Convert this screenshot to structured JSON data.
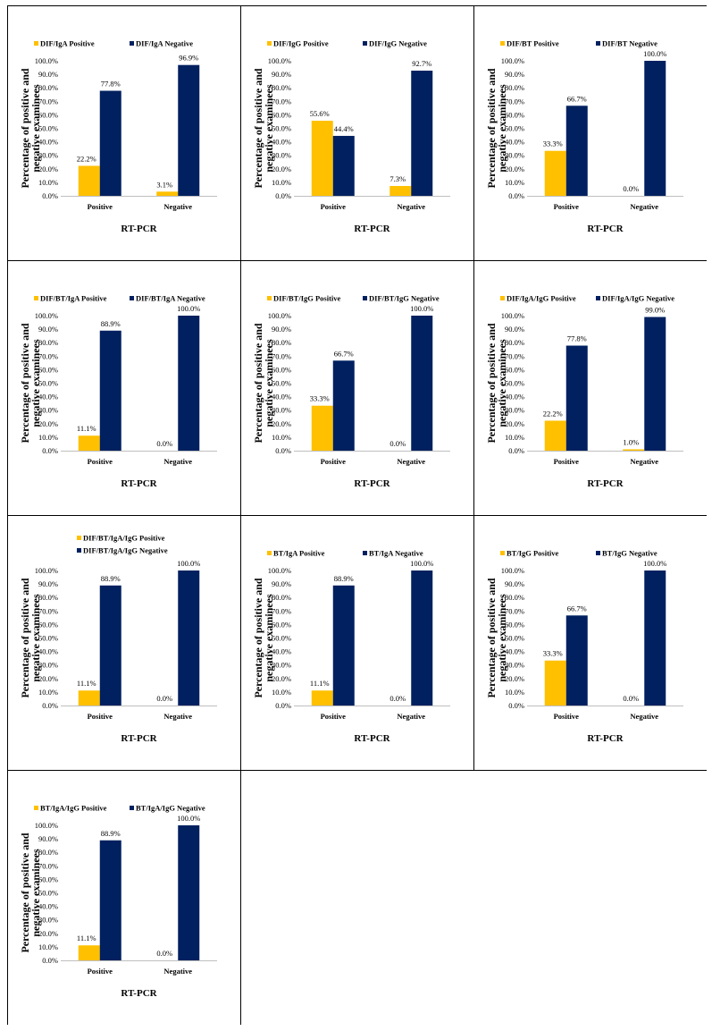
{
  "colors": {
    "positive": "#FFC000",
    "negative": "#002060",
    "border": "#000000"
  },
  "chart_data": [
    {
      "type": "bar",
      "categories": [
        "Positive",
        "Negative"
      ],
      "series": [
        {
          "name": "DIF/IgA Positive",
          "values": [
            22.2,
            3.1
          ]
        },
        {
          "name": "DIF/IgA Negative",
          "values": [
            77.8,
            96.9
          ]
        }
      ],
      "data_labels": [
        [
          "22.2%",
          "3.1%"
        ],
        [
          "77.8%",
          "96.9%"
        ]
      ],
      "xlabel": "RT-PCR",
      "ylabel": [
        "Percentage of positive and",
        "negative examinees"
      ],
      "ylim": [
        0,
        100
      ],
      "yticks": [
        "0.0%",
        "10.0%",
        "20.0%",
        "30.0%",
        "40.0%",
        "50.0%",
        "60.0%",
        "70.0%",
        "80.0%",
        "90.0%",
        "100.0%"
      ],
      "grid": false,
      "legend": "top"
    },
    {
      "type": "bar",
      "categories": [
        "Positive",
        "Negative"
      ],
      "series": [
        {
          "name": "DIF/IgG Positive",
          "values": [
            55.6,
            7.3
          ]
        },
        {
          "name": "DIF/IgG Negative",
          "values": [
            44.4,
            92.7
          ]
        }
      ],
      "data_labels": [
        [
          "55.6%",
          "7.3%"
        ],
        [
          "44.4%",
          "92.7%"
        ]
      ],
      "xlabel": "RT-PCR",
      "ylabel": [
        "Percentage of positive and",
        "negative examinees"
      ],
      "ylim": [
        0,
        100
      ],
      "yticks": [
        "0.0%",
        "10.0%",
        "20.0%",
        "30.0%",
        "40.0%",
        "50.0%",
        "60.0%",
        "70.0%",
        "80.0%",
        "90.0%",
        "100.0%"
      ],
      "grid": false,
      "legend": "top"
    },
    {
      "type": "bar",
      "categories": [
        "Positive",
        "Negative"
      ],
      "series": [
        {
          "name": "DIF/BT Positive",
          "values": [
            33.3,
            0.0
          ]
        },
        {
          "name": "DIF/BT Negative",
          "values": [
            66.7,
            100.0
          ]
        }
      ],
      "data_labels": [
        [
          "33.3%",
          "0.0%"
        ],
        [
          "66.7%",
          "100.0%"
        ]
      ],
      "xlabel": "RT-PCR",
      "ylabel": [
        "Percentage of positive and",
        "negative examinees"
      ],
      "ylim": [
        0,
        100
      ],
      "yticks": [
        "0.0%",
        "10.0%",
        "20.0%",
        "30.0%",
        "40.0%",
        "50.0%",
        "60.0%",
        "70.0%",
        "80.0%",
        "90.0%",
        "100.0%"
      ],
      "grid": false,
      "legend": "top"
    },
    {
      "type": "bar",
      "categories": [
        "Positive",
        "Negative"
      ],
      "series": [
        {
          "name": "DIF/BT/IgA Positive",
          "values": [
            11.1,
            0.0
          ]
        },
        {
          "name": "DIF/BT/IgA Negative",
          "values": [
            88.9,
            100.0
          ]
        }
      ],
      "data_labels": [
        [
          "11.1%",
          "0.0%"
        ],
        [
          "88.9%",
          "100.0%"
        ]
      ],
      "xlabel": "RT-PCR",
      "ylabel": [
        "Percentage of positive and",
        "negative examinees"
      ],
      "ylim": [
        0,
        100
      ],
      "yticks": [
        "0.0%",
        "10.0%",
        "20.0%",
        "30.0%",
        "40.0%",
        "50.0%",
        "60.0%",
        "70.0%",
        "80.0%",
        "90.0%",
        "100.0%"
      ],
      "grid": false,
      "legend": "top"
    },
    {
      "type": "bar",
      "categories": [
        "Positive",
        "Negative"
      ],
      "series": [
        {
          "name": "DIF/BT/IgG Positive",
          "values": [
            33.3,
            0.0
          ]
        },
        {
          "name": "DIF/BT/IgG Negative",
          "values": [
            66.7,
            100.0
          ]
        }
      ],
      "data_labels": [
        [
          "33.3%",
          "0.0%"
        ],
        [
          "66.7%",
          "100.0%"
        ]
      ],
      "xlabel": "RT-PCR",
      "ylabel": [
        "Percentage of positive and",
        "negative examinees"
      ],
      "ylim": [
        0,
        100
      ],
      "yticks": [
        "0.0%",
        "10.0%",
        "20.0%",
        "30.0%",
        "40.0%",
        "50.0%",
        "60.0%",
        "70.0%",
        "80.0%",
        "90.0%",
        "100.0%"
      ],
      "grid": false,
      "legend": "top"
    },
    {
      "type": "bar",
      "categories": [
        "Positive",
        "Negative"
      ],
      "series": [
        {
          "name": "DIF/IgA/IgG Positive",
          "values": [
            22.2,
            1.0
          ]
        },
        {
          "name": "DIF/IgA/IgG Negative",
          "values": [
            77.8,
            99.0
          ]
        }
      ],
      "data_labels": [
        [
          "22.2%",
          "1.0%"
        ],
        [
          "77.8%",
          "99.0%"
        ]
      ],
      "xlabel": "RT-PCR",
      "ylabel": [
        "Percentage of positive and",
        "negative examinees"
      ],
      "ylim": [
        0,
        100
      ],
      "yticks": [
        "0.0%",
        "10.0%",
        "20.0%",
        "30.0%",
        "40.0%",
        "50.0%",
        "60.0%",
        "70.0%",
        "80.0%",
        "90.0%",
        "100.0%"
      ],
      "grid": false,
      "legend": "top"
    },
    {
      "type": "bar",
      "categories": [
        "Positive",
        "Negative"
      ],
      "series": [
        {
          "name": "DIF/BT/IgA/IgG Positive",
          "values": [
            11.1,
            0.0
          ]
        },
        {
          "name": "DIF/BT/IgA/IgG Negative",
          "values": [
            88.9,
            100.0
          ]
        }
      ],
      "data_labels": [
        [
          "11.1%",
          "0.0%"
        ],
        [
          "88.9%",
          "100.0%"
        ]
      ],
      "xlabel": "RT-PCR",
      "ylabel": [
        "Percentage of positive and",
        "negative examinees"
      ],
      "ylim": [
        0,
        100
      ],
      "yticks": [
        "0.0%",
        "10.0%",
        "20.0%",
        "30.0%",
        "40.0%",
        "50.0%",
        "60.0%",
        "70.0%",
        "80.0%",
        "90.0%",
        "100.0%"
      ],
      "grid": false,
      "legend": "top-stacked"
    },
    {
      "type": "bar",
      "categories": [
        "Positive",
        "Negative"
      ],
      "series": [
        {
          "name": "BT/IgA Positive",
          "values": [
            11.1,
            0.0
          ]
        },
        {
          "name": "BT/IgA Negative",
          "values": [
            88.9,
            100.0
          ]
        }
      ],
      "data_labels": [
        [
          "11.1%",
          "0.0%"
        ],
        [
          "88.9%",
          "100.0%"
        ]
      ],
      "xlabel": "RT-PCR",
      "ylabel": [
        "Percentage of positive and",
        "negative examinees"
      ],
      "ylim": [
        0,
        100
      ],
      "yticks": [
        "0.0%",
        "10.0%",
        "20.0%",
        "30.0%",
        "40.0%",
        "50.0%",
        "60.0%",
        "70.0%",
        "80.0%",
        "90.0%",
        "100.0%"
      ],
      "grid": false,
      "legend": "top"
    },
    {
      "type": "bar",
      "categories": [
        "Positive",
        "Negative"
      ],
      "series": [
        {
          "name": "BT/IgG Positive",
          "values": [
            33.3,
            0.0
          ]
        },
        {
          "name": "BT/IgG Negative",
          "values": [
            66.7,
            100.0
          ]
        }
      ],
      "data_labels": [
        [
          "33.3%",
          "0.0%"
        ],
        [
          "66.7%",
          "100.0%"
        ]
      ],
      "xlabel": "RT-PCR",
      "ylabel": [
        "Percentage of positive and",
        "negative examinees"
      ],
      "ylim": [
        0,
        100
      ],
      "yticks": [
        "0.0%",
        "10.0%",
        "20.0%",
        "30.0%",
        "40.0%",
        "50.0%",
        "60.0%",
        "70.0%",
        "80.0%",
        "90.0%",
        "100.0%"
      ],
      "grid": false,
      "legend": "top"
    },
    {
      "type": "bar",
      "categories": [
        "Positive",
        "Negative"
      ],
      "series": [
        {
          "name": "BT/IgA/IgG Positive",
          "values": [
            11.1,
            0.0
          ]
        },
        {
          "name": "BT/IgA/IgG Negative",
          "values": [
            88.9,
            100.0
          ]
        }
      ],
      "data_labels": [
        [
          "11.1%",
          "0.0%"
        ],
        [
          "88.9%",
          "100.0%"
        ]
      ],
      "xlabel": "RT-PCR",
      "ylabel": [
        "Percentage of positive and",
        "negative examinees"
      ],
      "ylim": [
        0,
        100
      ],
      "yticks": [
        "0.0%",
        "10.0%",
        "20.0%",
        "30.0%",
        "40.0%",
        "50.0%",
        "60.0%",
        "70.0%",
        "80.0%",
        "90.0%",
        "100.0%"
      ],
      "grid": false,
      "legend": "top"
    }
  ]
}
